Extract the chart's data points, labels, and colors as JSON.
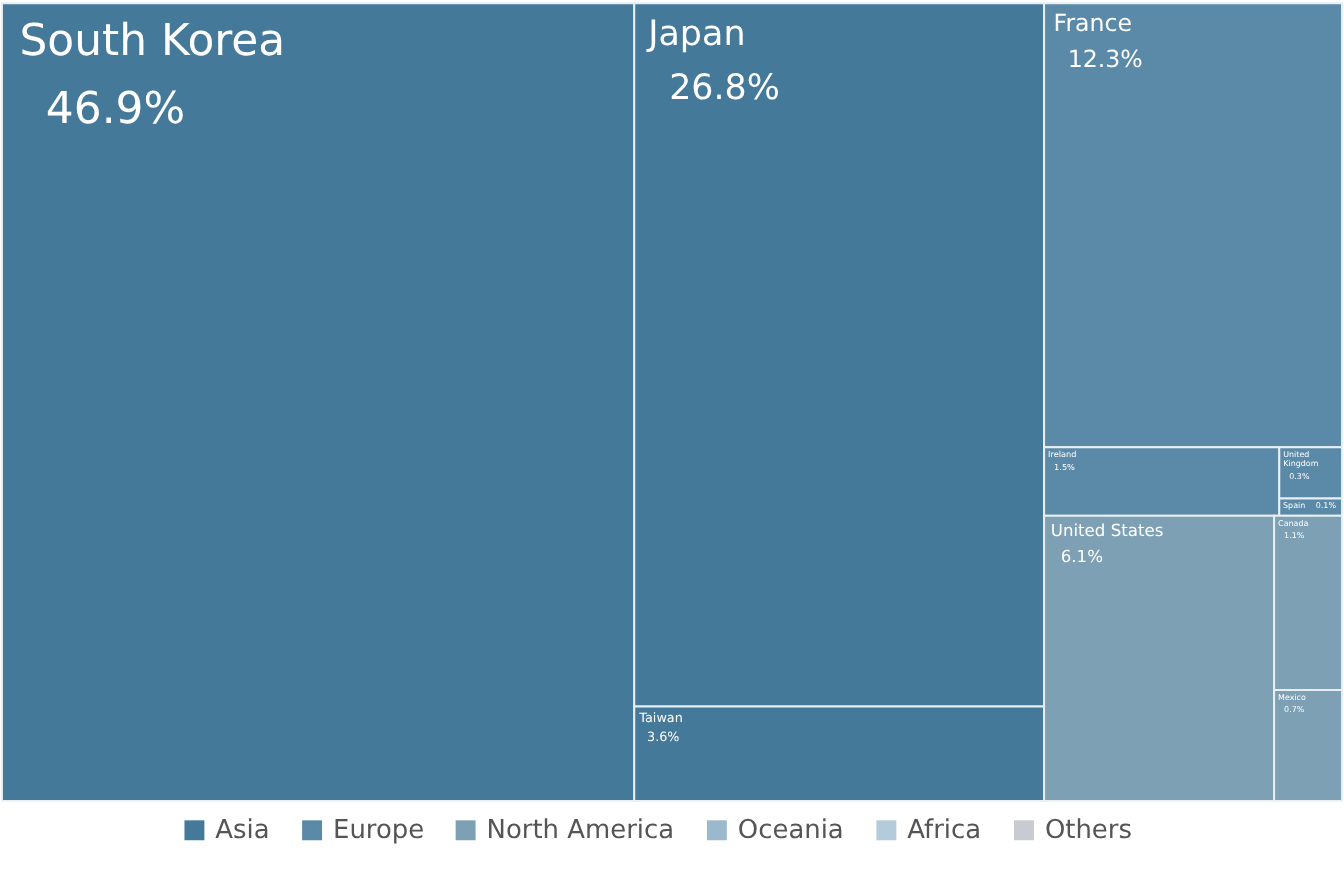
{
  "chart_data": {
    "type": "other",
    "legend": "bottom",
    "categories": [
      "South Korea",
      "Japan",
      "Taiwan",
      "France",
      "Ireland",
      "United Kingdom",
      "Spain",
      "United States",
      "Canada",
      "Mexico"
    ],
    "series": [
      {
        "name": "Asia",
        "color": "#44799a",
        "values": [
          46.9,
          26.8,
          3.6,
          null,
          null,
          null,
          null,
          null,
          null,
          null
        ],
        "value_labels": [
          "46.9%",
          "26.8%",
          "3.6%",
          null,
          null,
          null,
          null,
          null,
          null,
          null
        ]
      },
      {
        "name": "Europe",
        "color": "#5b8aa8",
        "values": [
          null,
          null,
          null,
          12.3,
          1.5,
          0.3,
          0.1,
          null,
          null,
          null
        ],
        "value_labels": [
          null,
          null,
          null,
          "12.3%",
          "1.5%",
          "0.3%",
          "0.1%",
          null,
          null,
          null
        ]
      },
      {
        "name": "North America",
        "color": "#7ea0b5",
        "values": [
          null,
          null,
          null,
          null,
          null,
          null,
          null,
          6.1,
          1.1,
          0.7
        ],
        "value_labels": [
          null,
          null,
          null,
          null,
          null,
          null,
          null,
          "6.1%",
          "1.1%",
          "0.7%"
        ]
      },
      {
        "name": "Oceania",
        "color": "#9ab9cc",
        "values": [
          null,
          null,
          null,
          null,
          null,
          null,
          null,
          null,
          null,
          null
        ]
      },
      {
        "name": "Africa",
        "color": "#b3cbdb",
        "values": [
          null,
          null,
          null,
          null,
          null,
          null,
          null,
          null,
          null,
          null
        ]
      },
      {
        "name": "Others",
        "color": "#c8ccd2",
        "values": [
          null,
          null,
          null,
          null,
          null,
          null,
          null,
          null,
          null,
          null
        ]
      }
    ]
  }
}
